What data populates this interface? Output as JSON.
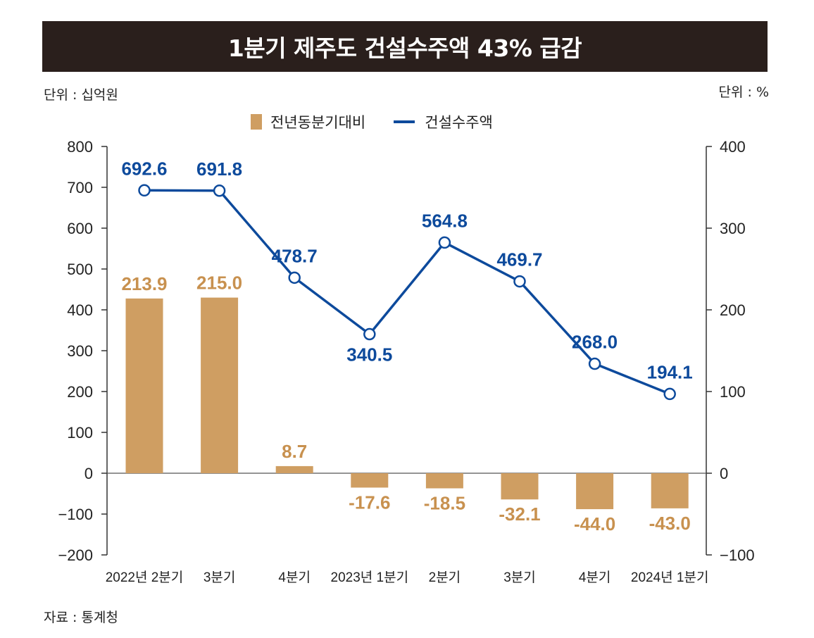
{
  "title": "1분기 제주도 건설수주액 43% 급감",
  "unit_left": "단위 : 십억원",
  "unit_right": "단위 : %",
  "source": "자료 : 통계청",
  "colors": {
    "bar": "#cf9e62",
    "line": "#0d4a9c",
    "title_bg": "#2a1f1c",
    "bar_label": "#c8914f"
  },
  "legend": {
    "bar_label": "전년동분기대비",
    "line_label": "건설수주액"
  },
  "chart_data": {
    "type": "bar+line",
    "categories": [
      "2022년 2분기",
      "3분기",
      "4분기",
      "2023년 1분기",
      "2분기",
      "3분기",
      "4분기",
      "2024년 1분기"
    ],
    "series": [
      {
        "name": "전년동분기대비",
        "type": "bar",
        "axis": "right",
        "values": [
          213.9,
          215.0,
          8.7,
          -17.6,
          -18.5,
          -32.1,
          -44.0,
          -43.0
        ],
        "labels": [
          "213.9",
          "215.0",
          "8.7",
          "-17.6",
          "-18.5",
          "-32.1",
          "-44.0",
          "-43.0"
        ]
      },
      {
        "name": "건설수주액",
        "type": "line",
        "axis": "left",
        "values": [
          692.6,
          691.8,
          478.7,
          340.5,
          564.8,
          469.7,
          268.0,
          194.1
        ],
        "labels": [
          "692.6",
          "691.8",
          "478.7",
          "340.5",
          "564.8",
          "469.7",
          "268.0",
          "194.1"
        ]
      }
    ],
    "left_axis": {
      "ylim": [
        -200,
        800
      ],
      "ticks": [
        "800",
        "700",
        "600",
        "500",
        "400",
        "300",
        "200",
        "100",
        "0",
        "−100",
        "−200"
      ]
    },
    "right_axis": {
      "ylim": [
        -100,
        400
      ],
      "ticks": [
        "400",
        "300",
        "200",
        "100",
        "0",
        "−100"
      ]
    }
  }
}
